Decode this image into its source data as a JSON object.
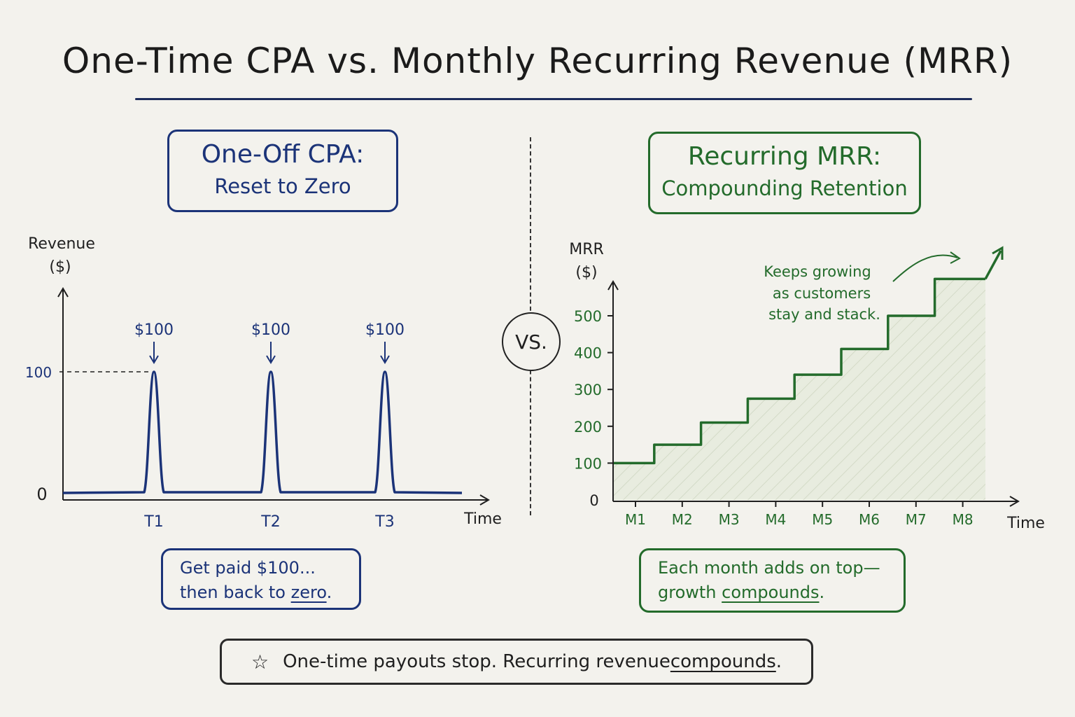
{
  "title": "One-Time CPA vs. Monthly Recurring Revenue (MRR)",
  "vs_label": "VS.",
  "left_panel": {
    "heading_line1": "One-Off CPA:",
    "heading_line2": "Reset to Zero",
    "note_line1": "Get paid $100...",
    "note_line2_prefix": "then back to ",
    "note_line2_emph": "zero",
    "note_line2_suffix": "."
  },
  "right_panel": {
    "heading_line1": "Recurring MRR:",
    "heading_line2": "Compounding Retention",
    "note_line1": "Each month adds on top—",
    "note_line2_prefix": "growth ",
    "note_line2_emph": "compounds",
    "note_line2_suffix": ".",
    "annotation": [
      "Keeps growing",
      "as customers",
      "stay and stack."
    ]
  },
  "bottom_note": {
    "prefix": "One-time payouts stop. Recurring revenue ",
    "emph": "compounds",
    "suffix": "."
  },
  "colors": {
    "blue": "#1b3378",
    "green": "#236b2b",
    "ink": "#1f1f1f",
    "fill": "#e4ead8"
  },
  "chart_data": [
    {
      "type": "line",
      "ylabel_line1": "Revenue",
      "ylabel_line2": "($)",
      "xlabel": "Time",
      "y_ticks": [
        0,
        100
      ],
      "ylim": [
        0,
        150
      ],
      "peaks": [
        {
          "x": "T1",
          "y": 100,
          "label": "$100"
        },
        {
          "x": "T2",
          "y": 100,
          "label": "$100"
        },
        {
          "x": "T3",
          "y": 100,
          "label": "$100"
        }
      ],
      "baseline": 0
    },
    {
      "type": "line",
      "ylabel_line1": "MRR",
      "ylabel_line2": "($)",
      "xlabel": "Time",
      "categories": [
        "M1",
        "M2",
        "M3",
        "M4",
        "M5",
        "M6",
        "M7",
        "M8"
      ],
      "values": [
        100,
        150,
        210,
        275,
        340,
        410,
        500,
        600
      ],
      "y_ticks": [
        0,
        100,
        200,
        300,
        400,
        500
      ],
      "ylim": [
        0,
        600
      ]
    }
  ]
}
